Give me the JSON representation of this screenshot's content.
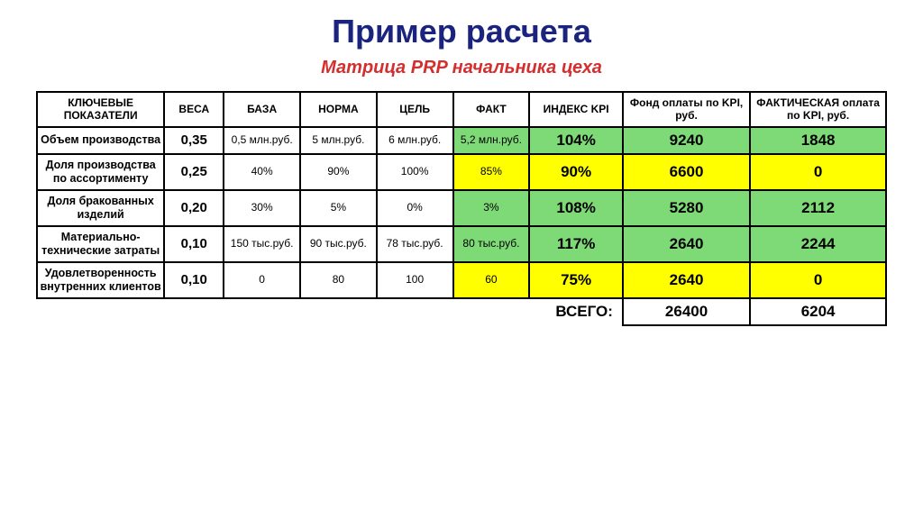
{
  "title": "Пример расчета",
  "subtitle": "Матрица PRP начальника цеха",
  "colors": {
    "green": "#7ed977",
    "yellow": "#ffff00",
    "title": "#1a237e",
    "subtitle": "#d32f2f",
    "border": "#000000",
    "bg": "#ffffff"
  },
  "headers": {
    "indicator": "КЛЮЧЕВЫЕ ПОКАЗАТЕЛИ",
    "weight": "ВЕСА",
    "base": "БАЗА",
    "norm": "НОРМА",
    "goal": "ЦЕЛЬ",
    "fact": "ФАКТ",
    "index": "ИНДЕКС KPI",
    "fund": "Фонд оплаты по KPI, руб.",
    "actual": "ФАКТИЧЕСКАЯ оплата по KPI, руб."
  },
  "rows": [
    {
      "indicator": "Объем производства",
      "weight": "0,35",
      "base": "0,5 млн.руб.",
      "norm": "5 млн.руб.",
      "goal": "6 млн.руб.",
      "fact": "5,2 млн.руб.",
      "fact_color": "green",
      "index": "104%",
      "index_color": "green",
      "fund": "9240",
      "fund_color": "green",
      "actual": "1848",
      "actual_color": "green"
    },
    {
      "indicator": "Доля производства по ассортименту",
      "weight": "0,25",
      "base": "40%",
      "norm": "90%",
      "goal": "100%",
      "fact": "85%",
      "fact_color": "yellow",
      "index": "90%",
      "index_color": "yellow",
      "fund": "6600",
      "fund_color": "yellow",
      "actual": "0",
      "actual_color": "yellow"
    },
    {
      "indicator": "Доля бракованных изделий",
      "weight": "0,20",
      "base": "30%",
      "norm": "5%",
      "goal": "0%",
      "fact": "3%",
      "fact_color": "green",
      "index": "108%",
      "index_color": "green",
      "fund": "5280",
      "fund_color": "green",
      "actual": "2112",
      "actual_color": "green"
    },
    {
      "indicator": "Материально-технические затраты",
      "weight": "0,10",
      "base": "150 тыс.руб.",
      "norm": "90 тыс.руб.",
      "goal": "78 тыс.руб.",
      "fact": "80 тыс.руб.",
      "fact_color": "green",
      "index": "117%",
      "index_color": "green",
      "fund": "2640",
      "fund_color": "green",
      "actual": "2244",
      "actual_color": "green"
    },
    {
      "indicator": "Удовлетворенность внутренних клиентов",
      "weight": "0,10",
      "base": "0",
      "norm": "80",
      "goal": "100",
      "fact": "60",
      "fact_color": "yellow",
      "index": "75%",
      "index_color": "yellow",
      "fund": "2640",
      "fund_color": "yellow",
      "actual": "0",
      "actual_color": "yellow"
    }
  ],
  "totals": {
    "label": "ВСЕГО:",
    "fund": "26400",
    "actual": "6204"
  }
}
